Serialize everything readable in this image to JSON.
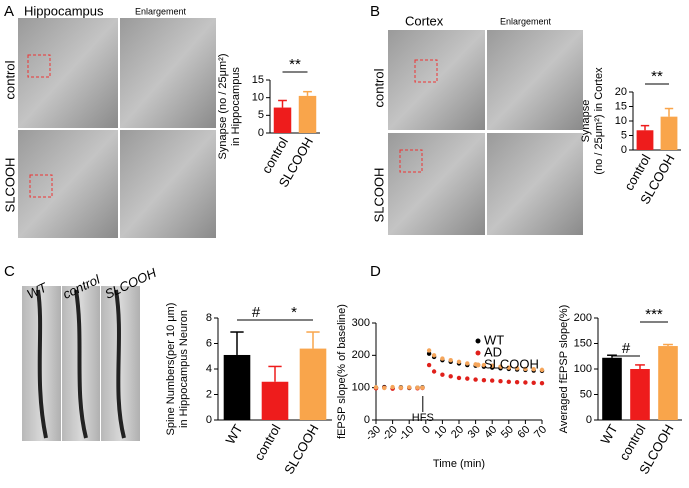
{
  "panels": [
    {
      "letter": "A",
      "title": "Hippocampus",
      "subtitle": "Enlargement",
      "rows": [
        "control",
        "SLCOOH"
      ]
    },
    {
      "letter": "B",
      "title": "Cortex",
      "subtitle": "Enlargement",
      "rows": [
        "control",
        "SLCOOH"
      ]
    },
    {
      "letter": "C",
      "columns": [
        "WT",
        "control",
        "SLCOOH"
      ]
    },
    {
      "letter": "D"
    }
  ],
  "chart_data": [
    {
      "type": "bar",
      "ylabel": [
        "Synapse (no / 25μm²)",
        "in Hippocampus"
      ],
      "categories": [
        "control",
        "SLCOOH"
      ],
      "values": [
        7.2,
        10.5
      ],
      "errors": [
        2.0,
        1.2
      ],
      "colors": [
        "#ee1c1c",
        "#f9a54b"
      ],
      "ylim": [
        0,
        15
      ],
      "yticks": [
        0,
        5,
        10,
        15
      ],
      "annotations": [
        "**"
      ]
    },
    {
      "type": "bar",
      "ylabel": [
        "Synapse",
        "(no / 25μm²) in Cortex"
      ],
      "categories": [
        "control",
        "SLCOOH"
      ],
      "values": [
        6.8,
        11.5
      ],
      "errors": [
        1.6,
        2.8
      ],
      "colors": [
        "#ee1c1c",
        "#f9a54b"
      ],
      "ylim": [
        0,
        20
      ],
      "yticks": [
        0,
        5,
        10,
        15,
        20
      ],
      "annotations": [
        "**"
      ]
    },
    {
      "type": "bar",
      "ylabel": [
        "Spine Numbers(per 10 μm)",
        "in Hippocampus Neuron"
      ],
      "categories": [
        "WT",
        "control",
        "SLCOOH"
      ],
      "values": [
        5.1,
        3.0,
        5.6
      ],
      "errors": [
        1.8,
        1.2,
        1.3
      ],
      "colors": [
        "#000000",
        "#ee1c1c",
        "#f9a54b"
      ],
      "ylim": [
        0,
        8
      ],
      "yticks": [
        0,
        2,
        4,
        6,
        8
      ],
      "annotations": [
        "#",
        "*"
      ]
    },
    {
      "type": "line",
      "xlabel": "Time (min)",
      "ylabel": [
        "fEPSP slope(% of baseline)"
      ],
      "annotations": [
        "HFS"
      ],
      "x": [
        -30,
        -25,
        -20,
        -15,
        -10,
        -5,
        -2,
        2,
        5,
        10,
        15,
        20,
        25,
        30,
        35,
        40,
        45,
        50,
        55,
        60,
        65,
        70
      ],
      "series": [
        {
          "name": "WT",
          "color": "#000000",
          "values": [
            100,
            102,
            98,
            101,
            99,
            100,
            101,
            205,
            195,
            185,
            180,
            175,
            170,
            168,
            165,
            162,
            160,
            158,
            156,
            155,
            153,
            152
          ]
        },
        {
          "name": "AD",
          "color": "#e0201b",
          "values": [
            98,
            100,
            97,
            99,
            100,
            98,
            99,
            170,
            150,
            140,
            135,
            130,
            128,
            125,
            123,
            122,
            120,
            118,
            117,
            116,
            115,
            114
          ]
        },
        {
          "name": "SLCOOH",
          "color": "#f5a55a",
          "values": [
            101,
            99,
            102,
            100,
            101,
            100,
            100,
            215,
            200,
            190,
            185,
            180,
            175,
            172,
            170,
            168,
            165,
            162,
            160,
            158,
            157,
            155
          ]
        }
      ],
      "xlim": [
        -30,
        70
      ],
      "xticks": [
        -30,
        -20,
        -10,
        0,
        10,
        20,
        30,
        40,
        50,
        60,
        70
      ],
      "ylim": [
        0,
        300
      ],
      "yticks": [
        0,
        100,
        200,
        300
      ]
    },
    {
      "type": "bar",
      "ylabel": [
        "Averaged fEPSP slope(%)"
      ],
      "categories": [
        "WT",
        "control",
        "SLCOOH"
      ],
      "values": [
        122,
        100,
        145
      ],
      "errors": [
        5,
        8,
        3
      ],
      "colors": [
        "#000000",
        "#ee1c1c",
        "#f9a54b"
      ],
      "ylim": [
        0,
        200
      ],
      "yticks": [
        0,
        50,
        100,
        150,
        200
      ],
      "annotations": [
        "#",
        "***"
      ]
    }
  ]
}
